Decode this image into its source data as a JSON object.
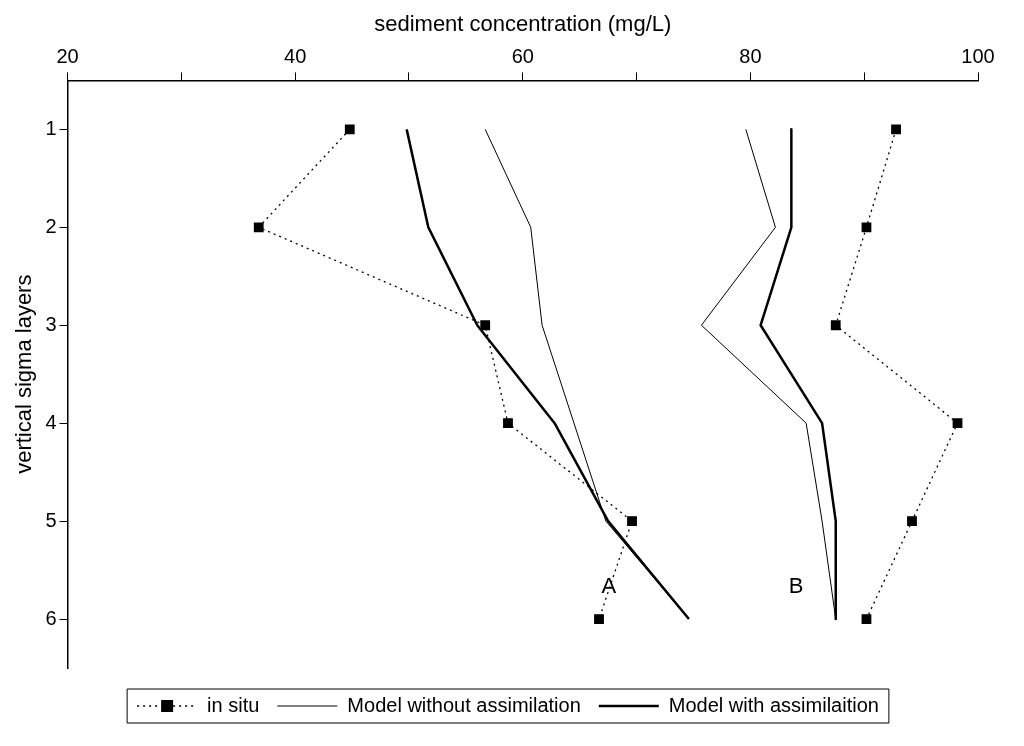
{
  "chart_data": {
    "type": "line",
    "xlabel": "sediment concentration (mg/L)",
    "ylabel": "vertical sigma layers",
    "xlim": [
      20,
      100
    ],
    "xticks": [
      20,
      {
        "value": 30,
        "label": null
      },
      40,
      {
        "value": 50,
        "label": null
      },
      60,
      {
        "value": 70,
        "label": null
      },
      80,
      {
        "value": 90,
        "label": null
      },
      100
    ],
    "ylim": [
      6.5,
      0.5
    ],
    "yticks": [
      1,
      2,
      3,
      4,
      5,
      6
    ],
    "grid": false,
    "legend": "bottom",
    "series": [
      {
        "name": "in situ",
        "color": "#000000",
        "marker": "square",
        "line_style": "dotted",
        "x": [
          44.8,
          36.8,
          56.7,
          58.7,
          69.6,
          66.7
        ],
        "values": [
          1,
          2,
          3,
          4,
          5,
          6
        ]
      },
      {
        "name": "Model without assimilation",
        "color": "#000000",
        "marker": "none",
        "line_style": "solid",
        "x": [
          56.7,
          60.7,
          61.7,
          64.5,
          67.3,
          74.6
        ],
        "values": [
          1,
          2,
          3,
          4,
          5,
          6
        ]
      },
      {
        "name": "Model with assimilaition",
        "color": "#000000",
        "marker": "none",
        "line_style": "solid",
        "x": [
          49.8,
          51.7,
          56.0,
          62.8,
          67.5,
          74.6
        ],
        "values": [
          1,
          2,
          3,
          4,
          5,
          6
        ]
      },
      {
        "color": "#000000",
        "marker": "square",
        "line_style": "dotted",
        "x": [
          92.8,
          90.2,
          87.5,
          98.2,
          94.2,
          90.2
        ],
        "values": [
          1,
          2,
          3,
          4,
          5,
          6
        ]
      },
      {
        "color": "#000000",
        "marker": "none",
        "line_style": "solid",
        "x": [
          79.6,
          82.2,
          75.7,
          84.9,
          86.3,
          87.5
        ],
        "values": [
          1,
          2,
          3,
          4,
          5,
          6
        ]
      },
      {
        "color": "#000000",
        "marker": "none",
        "line_style": "solid",
        "x": [
          83.6,
          83.6,
          80.9,
          86.3,
          87.5,
          87.5
        ],
        "values": [
          1,
          2,
          3,
          4,
          5,
          6
        ]
      }
    ],
    "annotations": [
      "A",
      "B"
    ]
  }
}
